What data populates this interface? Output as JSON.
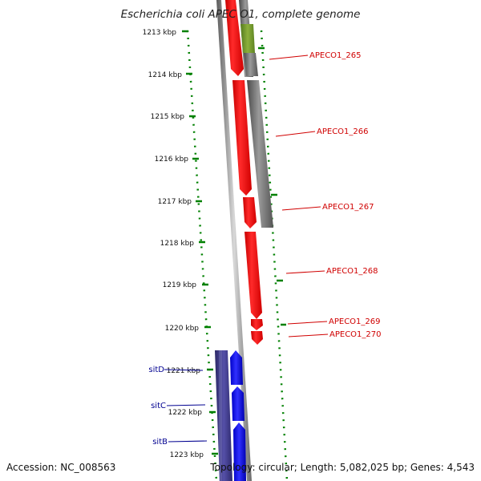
{
  "title": "Escherichia coli APEC O1, complete genome",
  "footer": {
    "accession": "Accession: NC_008563",
    "topology": "Topology: circular; Length: 5,082,025 bp; Genes: 4,543"
  },
  "ticks": [
    {
      "label": "1213 kbp"
    },
    {
      "label": "1214 kbp"
    },
    {
      "label": "1215 kbp"
    },
    {
      "label": "1216 kbp"
    },
    {
      "label": "1217 kbp"
    },
    {
      "label": "1218 kbp"
    },
    {
      "label": "1219 kbp"
    },
    {
      "label": "1220 kbp"
    },
    {
      "label": "1221 kbp"
    },
    {
      "label": "1222 kbp"
    },
    {
      "label": "1223 kbp"
    }
  ],
  "right_genes": [
    {
      "label": "APECO1_265"
    },
    {
      "label": "APECO1_266"
    },
    {
      "label": "APECO1_267"
    },
    {
      "label": "APECO1_268"
    },
    {
      "label": "APECO1_269"
    },
    {
      "label": "APECO1_270"
    }
  ],
  "left_genes": [
    {
      "label": "sitD"
    },
    {
      "label": "sitC"
    },
    {
      "label": "sitB"
    }
  ],
  "colors": {
    "gene_red": "#ff0000",
    "gene_blue": "#0000ff",
    "gene_navy": "#3a3580",
    "track_gray": "#6e6e6e",
    "track_green": "#6f9a2a",
    "tick_green": "#008000",
    "label_red": "#d00000",
    "label_blue": "#000090"
  }
}
